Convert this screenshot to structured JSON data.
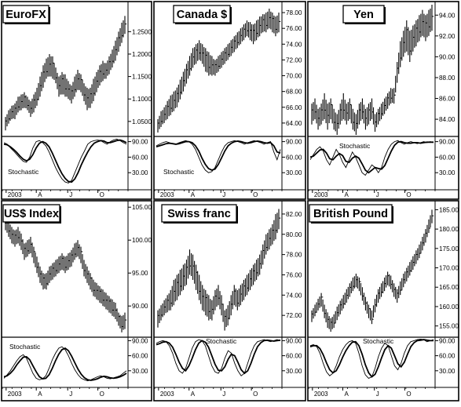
{
  "chart_data": [
    {
      "type": "bar",
      "title": "EuroFX",
      "price_ticks": [
        "1.2500",
        "1.2000",
        "1.1500",
        "1.1000",
        "1.0500"
      ],
      "ylim": [
        1.02,
        1.31
      ],
      "price_highs": [
        1.06,
        1.075,
        1.085,
        1.09,
        1.105,
        1.11,
        1.115,
        1.105,
        1.095,
        1.11,
        1.125,
        1.15,
        1.175,
        1.19,
        1.2,
        1.195,
        1.17,
        1.15,
        1.16,
        1.155,
        1.14,
        1.13,
        1.15,
        1.165,
        1.155,
        1.135,
        1.125,
        1.125,
        1.145,
        1.16,
        1.175,
        1.185,
        1.18,
        1.195,
        1.21,
        1.23,
        1.25,
        1.27,
        1.285
      ],
      "price_lows": [
        1.03,
        1.045,
        1.055,
        1.055,
        1.07,
        1.075,
        1.08,
        1.075,
        1.06,
        1.07,
        1.085,
        1.105,
        1.125,
        1.145,
        1.15,
        1.145,
        1.135,
        1.105,
        1.11,
        1.105,
        1.1,
        1.09,
        1.105,
        1.12,
        1.115,
        1.095,
        1.075,
        1.08,
        1.095,
        1.115,
        1.13,
        1.14,
        1.145,
        1.155,
        1.17,
        1.185,
        1.205,
        1.225,
        1.245
      ],
      "stoch_ticks": [
        "90.00",
        "60.00",
        "30.00"
      ],
      "stoch_label": "Stochastic",
      "stoch_fast": [
        88,
        85,
        78,
        72,
        65,
        58,
        52,
        50,
        60,
        78,
        90,
        92,
        88,
        82,
        70,
        55,
        40,
        28,
        18,
        12,
        10,
        15,
        30,
        45,
        60,
        72,
        85,
        90,
        92,
        93,
        92,
        88,
        85,
        90,
        93,
        95,
        92,
        88,
        85
      ],
      "stoch_slow": [
        85,
        84,
        80,
        75,
        69,
        62,
        56,
        53,
        56,
        65,
        78,
        87,
        90,
        87,
        80,
        68,
        54,
        40,
        28,
        19,
        13,
        12,
        18,
        30,
        45,
        58,
        70,
        80,
        87,
        90,
        92,
        91,
        88,
        88,
        90,
        92,
        93,
        91,
        88
      ],
      "months": [
        "2003",
        "A",
        "J",
        "O"
      ]
    },
    {
      "type": "bar",
      "title": "Canada $",
      "price_ticks": [
        "78.00",
        "76.00",
        "74.00",
        "72.00",
        "70.00",
        "68.00",
        "66.00",
        "64.00"
      ],
      "ylim": [
        62.5,
        79.0
      ],
      "price_highs": [
        64.5,
        65.5,
        66.0,
        66.8,
        67.5,
        68.0,
        68.5,
        69.5,
        70.5,
        71.5,
        72.5,
        73.5,
        74.0,
        74.5,
        74.0,
        73.5,
        73.0,
        72.5,
        72.0,
        72.5,
        73.0,
        73.5,
        74.0,
        74.5,
        75.0,
        75.5,
        76.0,
        76.5,
        77.0,
        76.8,
        76.5,
        77.0,
        77.5,
        77.8,
        78.0,
        78.5,
        78.0,
        77.5,
        78.0
      ],
      "price_lows": [
        62.8,
        63.5,
        64.0,
        64.5,
        65.0,
        65.5,
        66.0,
        67.0,
        68.0,
        69.0,
        70.0,
        71.0,
        71.5,
        72.0,
        71.5,
        70.5,
        70.0,
        70.0,
        70.0,
        70.5,
        71.0,
        71.5,
        72.0,
        72.5,
        73.0,
        73.5,
        74.0,
        74.5,
        75.0,
        74.5,
        74.0,
        74.5,
        75.0,
        75.5,
        75.5,
        76.0,
        75.5,
        75.0,
        75.5
      ],
      "stoch_ticks": [
        "90.00",
        "60.00",
        "30.00"
      ],
      "stoch_label": "Stochastic",
      "stoch_fast": [
        82,
        85,
        88,
        90,
        88,
        86,
        85,
        88,
        90,
        92,
        90,
        85,
        75,
        60,
        45,
        35,
        30,
        32,
        40,
        55,
        70,
        82,
        88,
        90,
        92,
        90,
        88,
        85,
        88,
        90,
        92,
        90,
        88,
        85,
        88,
        90,
        70,
        55,
        75
      ],
      "stoch_slow": [
        80,
        82,
        84,
        86,
        87,
        86,
        85,
        86,
        88,
        90,
        90,
        88,
        82,
        72,
        58,
        46,
        38,
        35,
        37,
        46,
        59,
        72,
        82,
        87,
        90,
        91,
        90,
        88,
        87,
        88,
        90,
        91,
        90,
        88,
        87,
        88,
        82,
        70,
        68
      ],
      "months": [
        "2003",
        "A",
        "J",
        "O"
      ]
    },
    {
      "type": "bar",
      "title": "Yen",
      "price_ticks": [
        "94.00",
        "92.00",
        "90.00",
        "88.00",
        "86.00",
        "84.00"
      ],
      "ylim": [
        82.5,
        95.0
      ],
      "price_highs": [
        85.5,
        86.0,
        85.0,
        85.5,
        86.5,
        85.5,
        86.0,
        85.0,
        84.5,
        85.5,
        86.5,
        85.5,
        86.0,
        85.0,
        84.5,
        85.5,
        86.0,
        85.0,
        85.5,
        86.0,
        84.5,
        85.0,
        85.5,
        86.0,
        86.5,
        87.0,
        87.0,
        89.5,
        91.5,
        92.5,
        93.5,
        92.5,
        93.0,
        93.5,
        94.0,
        94.5,
        94.0,
        94.5,
        95.0
      ],
      "price_lows": [
        83.5,
        84.0,
        83.0,
        83.5,
        84.0,
        83.0,
        84.0,
        83.0,
        82.5,
        83.5,
        84.0,
        83.5,
        84.0,
        83.0,
        82.5,
        83.5,
        84.0,
        83.0,
        83.5,
        84.0,
        82.8,
        83.5,
        84.0,
        84.5,
        85.0,
        85.5,
        85.5,
        87.5,
        89.0,
        90.0,
        90.5,
        89.5,
        90.5,
        91.0,
        91.5,
        92.0,
        91.5,
        92.0,
        92.5
      ],
      "stoch_ticks": [
        "90.00",
        "60.00",
        "30.00"
      ],
      "stoch_label": "Stochastic",
      "stoch_fast": [
        55,
        65,
        75,
        80,
        72,
        55,
        45,
        60,
        75,
        65,
        50,
        40,
        55,
        70,
        60,
        45,
        30,
        25,
        35,
        45,
        40,
        30,
        40,
        60,
        75,
        85,
        90,
        92,
        88,
        85,
        88,
        90,
        88,
        86,
        88,
        90,
        88,
        90,
        88
      ],
      "stoch_slow": [
        60,
        62,
        68,
        74,
        75,
        68,
        57,
        55,
        62,
        67,
        63,
        52,
        50,
        58,
        62,
        58,
        47,
        35,
        30,
        35,
        40,
        38,
        37,
        44,
        58,
        72,
        83,
        89,
        90,
        88,
        87,
        87,
        88,
        88,
        87,
        88,
        89,
        89,
        89
      ],
      "months": [
        "2003",
        "A",
        "J",
        "O"
      ]
    },
    {
      "type": "bar",
      "title": "US$ Index",
      "price_ticks": [
        "105.00",
        "100.00",
        "95.00",
        "90.00"
      ],
      "ylim": [
        85.5,
        105.5
      ],
      "price_highs": [
        104.0,
        103.0,
        102.0,
        101.5,
        102.0,
        101.0,
        99.5,
        100.0,
        100.5,
        99.0,
        97.5,
        96.0,
        95.0,
        95.0,
        96.0,
        96.5,
        97.0,
        97.5,
        98.0,
        97.5,
        98.0,
        98.5,
        99.5,
        100.0,
        99.0,
        97.0,
        96.0,
        95.0,
        94.0,
        93.5,
        93.0,
        92.5,
        92.0,
        91.5,
        91.0,
        90.5,
        89.0,
        88.5,
        89.0
      ],
      "price_lows": [
        101.5,
        100.5,
        99.5,
        99.0,
        99.5,
        98.5,
        97.0,
        97.5,
        98.0,
        96.5,
        95.0,
        93.5,
        92.5,
        92.5,
        93.5,
        94.0,
        94.5,
        95.0,
        95.5,
        95.0,
        95.5,
        96.0,
        97.0,
        97.5,
        96.5,
        94.5,
        93.5,
        92.5,
        91.5,
        91.0,
        90.5,
        90.0,
        89.5,
        89.0,
        88.5,
        88.0,
        87.0,
        86.0,
        86.5
      ],
      "stoch_ticks": [
        "90.00",
        "60.00",
        "30.00"
      ],
      "stoch_label": "Stochastic",
      "stoch_fast": [
        15,
        22,
        30,
        40,
        50,
        58,
        62,
        55,
        40,
        25,
        15,
        12,
        14,
        20,
        35,
        52,
        65,
        75,
        78,
        72,
        60,
        45,
        32,
        22,
        15,
        12,
        10,
        12,
        15,
        18,
        20,
        18,
        15,
        14,
        16,
        18,
        20,
        25,
        30
      ],
      "stoch_slow": [
        18,
        20,
        25,
        32,
        42,
        50,
        57,
        58,
        52,
        40,
        28,
        18,
        14,
        15,
        22,
        35,
        50,
        63,
        72,
        75,
        70,
        59,
        46,
        33,
        23,
        16,
        12,
        11,
        12,
        14,
        17,
        19,
        18,
        16,
        15,
        16,
        18,
        21,
        25
      ],
      "months": [
        "2003",
        "A",
        "J",
        "O"
      ]
    },
    {
      "type": "bar",
      "title": "Swiss franc",
      "price_ticks": [
        "82.00",
        "80.00",
        "78.00",
        "76.00",
        "74.00",
        "72.00"
      ],
      "ylim": [
        70.0,
        83.0
      ],
      "price_highs": [
        72.5,
        73.0,
        73.5,
        74.0,
        74.5,
        75.5,
        76.0,
        76.5,
        77.0,
        77.5,
        78.5,
        78.0,
        77.0,
        76.0,
        75.0,
        74.5,
        74.0,
        73.5,
        74.5,
        75.0,
        74.0,
        72.5,
        73.0,
        74.0,
        75.0,
        74.5,
        75.0,
        75.5,
        76.0,
        76.5,
        77.0,
        77.5,
        78.0,
        79.0,
        80.0,
        80.5,
        81.0,
        82.0,
        82.5
      ],
      "price_lows": [
        70.8,
        71.5,
        72.0,
        72.3,
        72.5,
        73.0,
        73.5,
        74.0,
        74.5,
        75.0,
        76.0,
        75.5,
        74.5,
        73.5,
        72.5,
        72.0,
        71.5,
        71.5,
        72.5,
        73.0,
        72.0,
        70.5,
        71.0,
        72.0,
        73.0,
        72.5,
        73.0,
        73.5,
        74.0,
        74.5,
        75.0,
        75.5,
        76.0,
        77.0,
        78.0,
        78.5,
        79.0,
        79.5,
        80.5
      ],
      "stoch_ticks": [
        "90.00",
        "60.00",
        "30.00"
      ],
      "stoch_label": "Stochastic",
      "stoch_fast": [
        85,
        88,
        90,
        88,
        80,
        65,
        45,
        30,
        25,
        35,
        55,
        75,
        88,
        92,
        90,
        80,
        60,
        40,
        28,
        25,
        35,
        55,
        70,
        65,
        45,
        30,
        20,
        25,
        45,
        65,
        80,
        88,
        90,
        92,
        90,
        88,
        90,
        92,
        90
      ],
      "stoch_slow": [
        82,
        84,
        87,
        88,
        85,
        77,
        63,
        47,
        35,
        30,
        40,
        55,
        72,
        85,
        90,
        87,
        77,
        60,
        43,
        31,
        30,
        38,
        53,
        63,
        60,
        47,
        32,
        25,
        30,
        45,
        63,
        78,
        86,
        90,
        91,
        90,
        89,
        90,
        91
      ],
      "months": [
        "2003",
        "A",
        "J",
        "O"
      ]
    },
    {
      "type": "bar",
      "title": "British Pound",
      "price_ticks": [
        "185.00",
        "180.00",
        "175.00",
        "170.00",
        "165.00",
        "160.00",
        "155.00"
      ],
      "ylim": [
        152.5,
        186.5
      ],
      "price_highs": [
        159.0,
        160.5,
        162.0,
        163.5,
        160.5,
        158.5,
        157.0,
        158.0,
        160.0,
        161.5,
        163.0,
        164.5,
        166.0,
        167.5,
        168.5,
        167.5,
        165.0,
        162.5,
        160.5,
        159.0,
        162.0,
        164.5,
        166.0,
        167.5,
        169.0,
        168.0,
        166.0,
        164.5,
        166.5,
        168.5,
        170.0,
        171.5,
        173.0,
        174.5,
        176.0,
        178.0,
        180.0,
        182.5,
        185.0
      ],
      "price_lows": [
        156.0,
        157.5,
        159.0,
        160.0,
        157.0,
        154.5,
        153.5,
        154.5,
        156.5,
        158.0,
        159.5,
        161.0,
        162.5,
        164.0,
        165.0,
        164.0,
        161.5,
        159.0,
        157.0,
        155.5,
        158.5,
        161.0,
        162.5,
        164.0,
        165.5,
        164.5,
        162.5,
        161.0,
        163.0,
        165.0,
        166.5,
        168.0,
        169.5,
        171.0,
        172.5,
        174.5,
        176.5,
        179.0,
        181.5
      ],
      "stoch_ticks": [
        "90.00",
        "60.00",
        "30.00"
      ],
      "stoch_label": "Stochastic",
      "stoch_fast": [
        80,
        82,
        78,
        65,
        45,
        28,
        20,
        25,
        40,
        58,
        72,
        82,
        88,
        90,
        85,
        65,
        40,
        22,
        15,
        18,
        35,
        58,
        75,
        85,
        80,
        60,
        40,
        32,
        45,
        65,
        80,
        88,
        90,
        92,
        93,
        92,
        88,
        90,
        92
      ],
      "stoch_slow": [
        78,
        80,
        80,
        74,
        62,
        46,
        32,
        26,
        30,
        42,
        57,
        70,
        80,
        87,
        88,
        80,
        63,
        42,
        26,
        18,
        23,
        38,
        56,
        72,
        80,
        75,
        60,
        44,
        38,
        47,
        63,
        78,
        86,
        90,
        91,
        92,
        91,
        90,
        90
      ],
      "months": [
        "2003",
        "A",
        "J",
        "O"
      ]
    }
  ]
}
